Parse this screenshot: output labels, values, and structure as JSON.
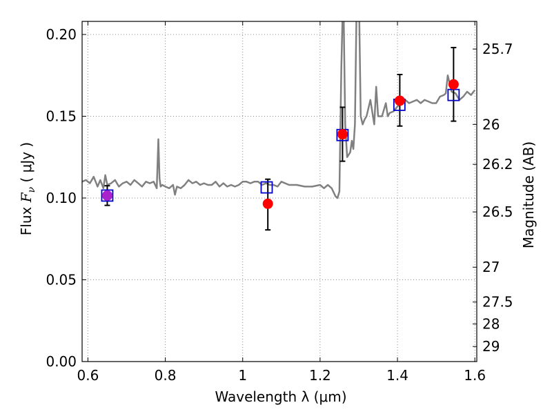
{
  "chart_data": {
    "type": "scatter",
    "xlabel": "Wavelength  λ (μm)",
    "ylabel": "Flux  F_ν  ( μJy )",
    "ylabel_right": "Magnitude (AB)",
    "xlim": [
      0.585,
      1.605
    ],
    "ylim": [
      0.0,
      0.208
    ],
    "grid": true,
    "x_ticks": [
      0.6,
      0.8,
      1.0,
      1.2,
      1.4,
      1.6
    ],
    "x_tick_labels": [
      "0.6",
      "0.8",
      "1",
      "1.2",
      "1.4",
      "1.6"
    ],
    "y_ticks": [
      0.0,
      0.05,
      0.1,
      0.15,
      0.2
    ],
    "y_tick_labels": [
      "0.00",
      "0.05",
      "0.10",
      "0.15",
      "0.20"
    ],
    "right_ticks": [
      {
        "label": "25.7",
        "flux": 0.1911
      },
      {
        "label": "26",
        "flux": 0.145
      },
      {
        "label": "26.2",
        "flux": 0.1206
      },
      {
        "label": "26.5",
        "flux": 0.0915
      },
      {
        "label": "27",
        "flux": 0.0577
      },
      {
        "label": "27.5",
        "flux": 0.0364
      },
      {
        "label": "28",
        "flux": 0.023
      },
      {
        "label": "29",
        "flux": 0.0092
      }
    ],
    "colors": {
      "model": "#808080",
      "observed": "#ff0000",
      "model_points": "#0000cc",
      "first_point": "#aa22cc",
      "errorbar": "#000000",
      "grid": "#888888"
    },
    "spectrum": {
      "x": [
        0.585,
        0.595,
        0.605,
        0.615,
        0.625,
        0.632,
        0.64,
        0.645,
        0.65,
        0.66,
        0.67,
        0.68,
        0.69,
        0.7,
        0.71,
        0.72,
        0.73,
        0.74,
        0.75,
        0.76,
        0.77,
        0.778,
        0.782,
        0.785,
        0.788,
        0.792,
        0.8,
        0.81,
        0.82,
        0.825,
        0.83,
        0.84,
        0.85,
        0.86,
        0.87,
        0.88,
        0.89,
        0.9,
        0.91,
        0.92,
        0.93,
        0.94,
        0.95,
        0.96,
        0.97,
        0.98,
        0.99,
        1.0,
        1.01,
        1.02,
        1.03,
        1.04,
        1.05,
        1.06,
        1.07,
        1.08,
        1.09,
        1.1,
        1.12,
        1.14,
        1.16,
        1.18,
        1.2,
        1.21,
        1.22,
        1.23,
        1.24,
        1.245,
        1.25,
        1.255,
        1.26,
        1.265,
        1.27,
        1.278,
        1.282,
        1.286,
        1.29,
        1.295,
        1.3,
        1.305,
        1.31,
        1.315,
        1.32,
        1.33,
        1.34,
        1.345,
        1.35,
        1.36,
        1.37,
        1.375,
        1.38,
        1.39,
        1.4,
        1.41,
        1.42,
        1.43,
        1.44,
        1.45,
        1.46,
        1.47,
        1.48,
        1.49,
        1.5,
        1.51,
        1.52,
        1.525,
        1.53,
        1.54,
        1.55,
        1.56,
        1.57,
        1.58,
        1.59,
        1.6
      ],
      "y": [
        0.11,
        0.111,
        0.109,
        0.113,
        0.107,
        0.111,
        0.106,
        0.114,
        0.108,
        0.109,
        0.111,
        0.107,
        0.109,
        0.11,
        0.108,
        0.111,
        0.109,
        0.107,
        0.11,
        0.109,
        0.11,
        0.106,
        0.136,
        0.112,
        0.107,
        0.108,
        0.107,
        0.106,
        0.108,
        0.102,
        0.107,
        0.106,
        0.108,
        0.111,
        0.109,
        0.11,
        0.108,
        0.109,
        0.108,
        0.108,
        0.11,
        0.107,
        0.109,
        0.107,
        0.108,
        0.107,
        0.108,
        0.11,
        0.11,
        0.109,
        0.11,
        0.11,
        0.108,
        0.109,
        0.108,
        0.108,
        0.107,
        0.11,
        0.108,
        0.108,
        0.107,
        0.107,
        0.108,
        0.106,
        0.108,
        0.106,
        0.101,
        0.1,
        0.104,
        0.18,
        0.23,
        0.145,
        0.125,
        0.128,
        0.135,
        0.13,
        0.145,
        0.23,
        0.23,
        0.15,
        0.145,
        0.148,
        0.15,
        0.16,
        0.145,
        0.168,
        0.15,
        0.15,
        0.158,
        0.15,
        0.152,
        0.153,
        0.156,
        0.158,
        0.16,
        0.158,
        0.159,
        0.16,
        0.158,
        0.16,
        0.159,
        0.158,
        0.158,
        0.162,
        0.163,
        0.164,
        0.175,
        0.165,
        0.164,
        0.16,
        0.162,
        0.165,
        0.163,
        0.166
      ]
    },
    "observed": {
      "x": [
        0.65,
        1.065,
        1.258,
        1.406,
        1.545
      ],
      "y": [
        0.1015,
        0.0965,
        0.139,
        0.1595,
        0.1695
      ],
      "yerr_low": [
        0.0955,
        0.0805,
        0.1225,
        0.144,
        0.147
      ],
      "yerr_high": [
        0.1075,
        0.1115,
        0.1555,
        0.1755,
        0.192
      ]
    },
    "model_points": {
      "x": [
        0.65,
        1.062,
        1.258,
        1.405,
        1.545
      ],
      "y": [
        0.1015,
        0.1065,
        0.1385,
        0.157,
        0.163
      ]
    }
  }
}
